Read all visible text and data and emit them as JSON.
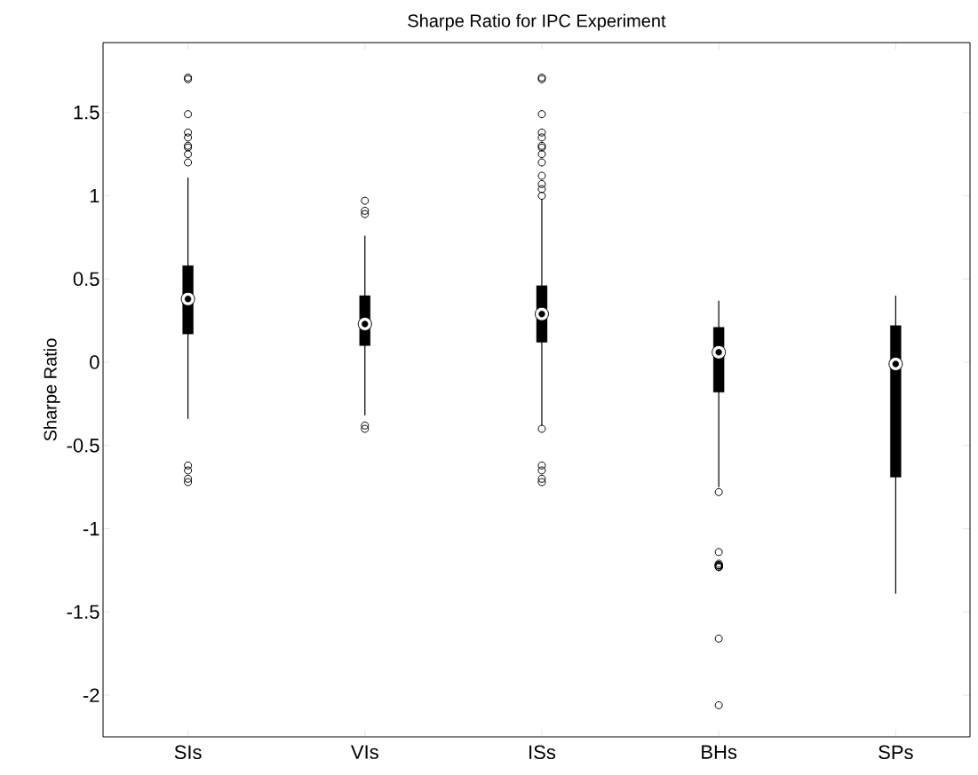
{
  "chart_data": {
    "type": "box",
    "title": "Sharpe Ratio for IPC Experiment",
    "ylabel": "Sharpe Ratio",
    "categories": [
      "SIs",
      "VIs",
      "ISs",
      "BHs",
      "SPs"
    ],
    "boxes": [
      {
        "low": -0.34,
        "q1": 0.17,
        "median": 0.38,
        "q3": 0.58,
        "high": 1.11,
        "outliers": [
          1.71,
          1.7,
          1.49,
          1.38,
          1.35,
          1.3,
          1.29,
          1.25,
          1.2,
          -0.62,
          -0.65,
          -0.7,
          -0.72
        ]
      },
      {
        "low": -0.32,
        "q1": 0.1,
        "median": 0.23,
        "q3": 0.4,
        "high": 0.76,
        "outliers": [
          0.97,
          0.91,
          0.89,
          -0.38,
          -0.4
        ]
      },
      {
        "low": -0.38,
        "q1": 0.12,
        "median": 0.29,
        "q3": 0.46,
        "high": 0.98,
        "outliers": [
          1.71,
          1.7,
          1.49,
          1.38,
          1.35,
          1.3,
          1.29,
          1.25,
          1.2,
          1.12,
          1.07,
          1.04,
          1.0,
          -0.4,
          -0.62,
          -0.65,
          -0.7,
          -0.72
        ]
      },
      {
        "low": -0.75,
        "q1": -0.18,
        "median": 0.06,
        "q3": 0.21,
        "high": 0.37,
        "outliers": [
          -0.78,
          -1.14,
          -1.21,
          -1.22,
          -1.23,
          -1.23,
          -1.23,
          -1.22,
          -1.22,
          -1.22,
          -1.66,
          -2.06
        ]
      },
      {
        "low": -1.39,
        "q1": -0.69,
        "median": -0.01,
        "q3": 0.22,
        "high": 0.4
      }
    ],
    "ylim": [
      -2.25,
      1.92
    ],
    "yticks": [
      -2,
      -1.5,
      -1,
      -0.5,
      0,
      0.5,
      1,
      1.5
    ]
  }
}
